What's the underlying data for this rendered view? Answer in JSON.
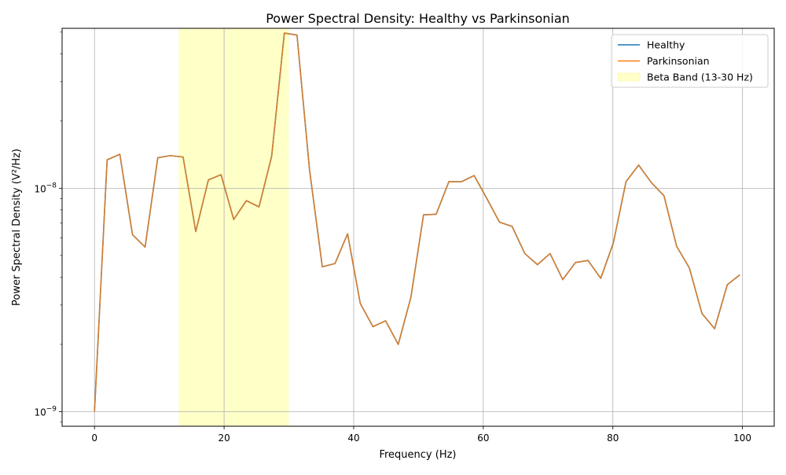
{
  "chart_data": {
    "type": "line",
    "title": "Power Spectral Density: Healthy vs Parkinsonian",
    "xlabel": "Frequency (Hz)",
    "ylabel": "Power Spectral Density (V²/Hz)",
    "xlim": [
      -5,
      104.9
    ],
    "ylim": [
      8.6e-10,
      5.2e-08
    ],
    "yscale": "log",
    "grid": true,
    "legend_position": "top-right",
    "x_ticks": [
      0,
      20,
      40,
      60,
      80,
      100
    ],
    "x_tick_labels": [
      "0",
      "20",
      "40",
      "60",
      "80",
      "100"
    ],
    "y_ticks": [
      1e-09,
      1e-08
    ],
    "y_tick_labels": [
      {
        "base": "10",
        "exp": "−9"
      },
      {
        "base": "10",
        "exp": "−8"
      }
    ],
    "shaded_band": {
      "label": "Beta Band (13-30 Hz)",
      "x0": 13,
      "x1": 30,
      "color": "#ffffc8"
    },
    "x": [
      0,
      1.95,
      3.91,
      5.86,
      7.81,
      9.77,
      11.72,
      13.67,
      15.63,
      17.58,
      19.53,
      21.48,
      23.44,
      25.39,
      27.34,
      29.3,
      31.25,
      33.2,
      35.16,
      37.11,
      39.06,
      41.02,
      42.97,
      44.92,
      46.88,
      48.83,
      50.78,
      52.73,
      54.69,
      56.64,
      58.59,
      60.55,
      62.5,
      64.45,
      66.41,
      68.36,
      70.31,
      72.27,
      74.22,
      76.17,
      78.13,
      80.08,
      82.03,
      83.98,
      85.94,
      87.89,
      89.84,
      91.8,
      93.75,
      95.7,
      97.66,
      99.61
    ],
    "series": [
      {
        "name": "Healthy",
        "color": "#1f77b4",
        "values": [
          1e-09,
          1.34e-08,
          1.42e-08,
          6.2e-09,
          5.45e-09,
          1.37e-08,
          1.4e-08,
          1.38e-08,
          6.4e-09,
          1.09e-08,
          1.15e-08,
          7.25e-09,
          8.8e-09,
          8.25e-09,
          1.39e-08,
          4.95e-08,
          4.85e-08,
          1.2e-08,
          4.45e-09,
          4.6e-09,
          6.25e-09,
          3.05e-09,
          2.4e-09,
          2.55e-09,
          2e-09,
          3.25e-09,
          7.6e-09,
          7.65e-09,
          1.07e-08,
          1.07e-08,
          1.14e-08,
          9e-09,
          7.05e-09,
          6.75e-09,
          5.1e-09,
          4.55e-09,
          5.1e-09,
          3.9e-09,
          4.65e-09,
          4.75e-09,
          3.95e-09,
          5.7e-09,
          1.07e-08,
          1.27e-08,
          1.06e-08,
          9.25e-09,
          5.5e-09,
          4.4e-09,
          2.75e-09,
          2.35e-09,
          3.7e-09,
          4.1e-09
        ]
      },
      {
        "name": "Parkinsonian",
        "color": "#ff7f0e",
        "values": [
          1e-09,
          1.34e-08,
          1.42e-08,
          6.2e-09,
          5.45e-09,
          1.37e-08,
          1.4e-08,
          1.38e-08,
          6.4e-09,
          1.09e-08,
          1.15e-08,
          7.25e-09,
          8.8e-09,
          8.25e-09,
          1.39e-08,
          4.95e-08,
          4.85e-08,
          1.2e-08,
          4.45e-09,
          4.6e-09,
          6.25e-09,
          3.05e-09,
          2.4e-09,
          2.55e-09,
          2e-09,
          3.25e-09,
          7.6e-09,
          7.65e-09,
          1.07e-08,
          1.07e-08,
          1.14e-08,
          9e-09,
          7.05e-09,
          6.75e-09,
          5.1e-09,
          4.55e-09,
          5.1e-09,
          3.9e-09,
          4.65e-09,
          4.75e-09,
          3.95e-09,
          5.7e-09,
          1.07e-08,
          1.27e-08,
          1.06e-08,
          9.25e-09,
          5.5e-09,
          4.4e-09,
          2.75e-09,
          2.35e-09,
          3.7e-09,
          4.1e-09
        ]
      }
    ]
  }
}
